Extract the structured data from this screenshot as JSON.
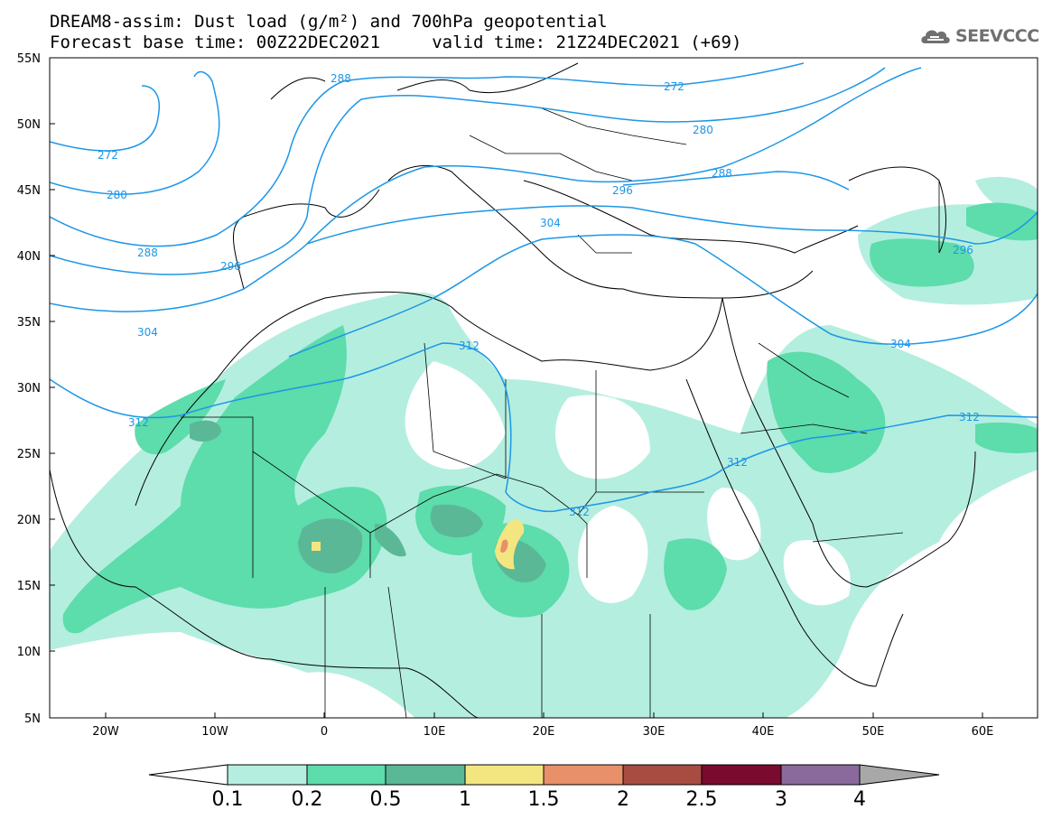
{
  "header": {
    "title_line1": "DREAM8-assim: Dust load (g/m²) and 700hPa geopotential",
    "title_line2": "Forecast base time: 00Z22DEC2021     valid time: 21Z24DEC2021 (+69)"
  },
  "logo": {
    "text": "SEEVCCC",
    "icon": "cloud-icon"
  },
  "map": {
    "lat_labels": [
      "55N",
      "50N",
      "45N",
      "40N",
      "35N",
      "30N",
      "25N",
      "20N",
      "15N",
      "10N",
      "5N"
    ],
    "lon_labels": [
      "20W",
      "10W",
      "0",
      "10E",
      "20E",
      "30E",
      "40E",
      "50E",
      "60E"
    ],
    "contour_labels": [
      "272",
      "280",
      "288",
      "296",
      "304",
      "312",
      "288",
      "272",
      "280",
      "288",
      "296",
      "304",
      "312",
      "296",
      "304",
      "312",
      "312",
      "312"
    ],
    "contour_color": "#1e96e6"
  },
  "colorbar": {
    "labels": [
      "0.1",
      "0.2",
      "0.5",
      "1",
      "1.5",
      "2",
      "2.5",
      "3",
      "4"
    ],
    "colors": [
      "#b4eedf",
      "#5ddcac",
      "#5bb896",
      "#f3e680",
      "#e8906a",
      "#a84c42",
      "#7a0a2e",
      "#8a6a9c",
      "#a8a8a8"
    ]
  }
}
